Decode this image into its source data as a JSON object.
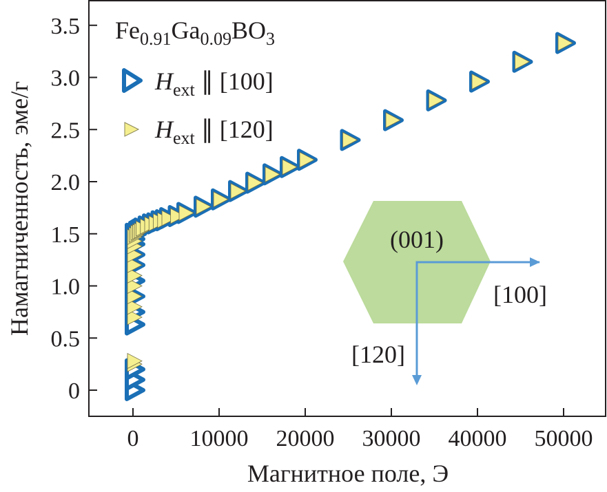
{
  "chart_data": {
    "type": "scatter",
    "title": "Fe0.91Ga0.09BO3",
    "title_parts": {
      "base1": "Fe",
      "sub1": "0.91",
      "base2": "Ga",
      "sub2": "0.09",
      "base3": "BO",
      "sub3": "3"
    },
    "xlabel": "Магнитное поле, Э",
    "ylabel": "Намагниченность, эме/г",
    "xlim": [
      -5200,
      55000
    ],
    "ylim": [
      -0.25,
      3.75
    ],
    "xticks": [
      "0",
      "10000",
      "20000",
      "30000",
      "40000",
      "50000"
    ],
    "xtick_values": [
      0,
      10000,
      20000,
      30000,
      40000,
      50000
    ],
    "yticks": [
      "0",
      "0.5",
      "1.0",
      "1.5",
      "2.0",
      "2.5",
      "3.0",
      "3.5"
    ],
    "ytick_values": [
      0,
      0.5,
      1.0,
      1.5,
      2.0,
      2.5,
      3.0,
      3.5
    ],
    "grid": false,
    "legend_position": "top-left",
    "series": [
      {
        "name": "H_ext ∥ [100]",
        "legend": {
          "H": "H",
          "sub": "ext",
          "rest": " ∥ [100]"
        },
        "marker": "triangle-right-open",
        "color": "#1a6fb5",
        "x": [
          0,
          0,
          0,
          0,
          0,
          0,
          0,
          0,
          0,
          0,
          0,
          0,
          200,
          400,
          600,
          800,
          1000,
          1500,
          2000,
          2500,
          3000,
          3500,
          4000,
          5000,
          6000,
          8000,
          10000,
          12000,
          14000,
          16000,
          18000,
          20000,
          25000,
          30000,
          35000,
          40000,
          45000,
          50000
        ],
        "y": [
          0.0,
          0.1,
          0.2,
          0.63,
          0.75,
          0.9,
          1.05,
          1.2,
          1.3,
          1.4,
          1.45,
          1.5,
          1.5,
          1.52,
          1.53,
          1.54,
          1.55,
          1.57,
          1.59,
          1.6,
          1.62,
          1.63,
          1.65,
          1.67,
          1.7,
          1.76,
          1.83,
          1.91,
          1.99,
          2.07,
          2.14,
          2.21,
          2.4,
          2.59,
          2.78,
          2.96,
          3.15,
          3.33
        ]
      },
      {
        "name": "H_ext ∥ [120]",
        "legend": {
          "H": "H",
          "sub": "ext",
          "rest": " ∥ [120]"
        },
        "marker": "triangle-right-filled",
        "color": "#f5ef8f",
        "x": [
          0,
          0,
          0,
          0,
          0,
          0,
          0,
          0,
          0,
          0,
          0,
          0,
          200,
          400,
          600,
          800,
          1000,
          1500,
          2000,
          2500,
          3000,
          3500,
          4000,
          5000,
          6000,
          8000,
          10000,
          12000,
          14000,
          16000,
          18000,
          20000,
          25000,
          30000,
          35000,
          40000,
          45000,
          50000
        ],
        "y": [
          0.25,
          0.28,
          0.7,
          0.8,
          0.9,
          1.0,
          1.1,
          1.2,
          1.3,
          1.38,
          1.43,
          1.47,
          1.49,
          1.51,
          1.52,
          1.53,
          1.55,
          1.57,
          1.59,
          1.6,
          1.62,
          1.63,
          1.65,
          1.67,
          1.7,
          1.76,
          1.83,
          1.91,
          1.99,
          2.07,
          2.14,
          2.21,
          2.4,
          2.59,
          2.78,
          2.96,
          3.15,
          3.33
        ]
      }
    ],
    "inset": {
      "plane_label": "(001)",
      "axis1_label": "[100]",
      "axis2_label": "[120]",
      "hexagon_color": "#bcdb9c",
      "arrow_color": "#5a9bd6"
    }
  }
}
